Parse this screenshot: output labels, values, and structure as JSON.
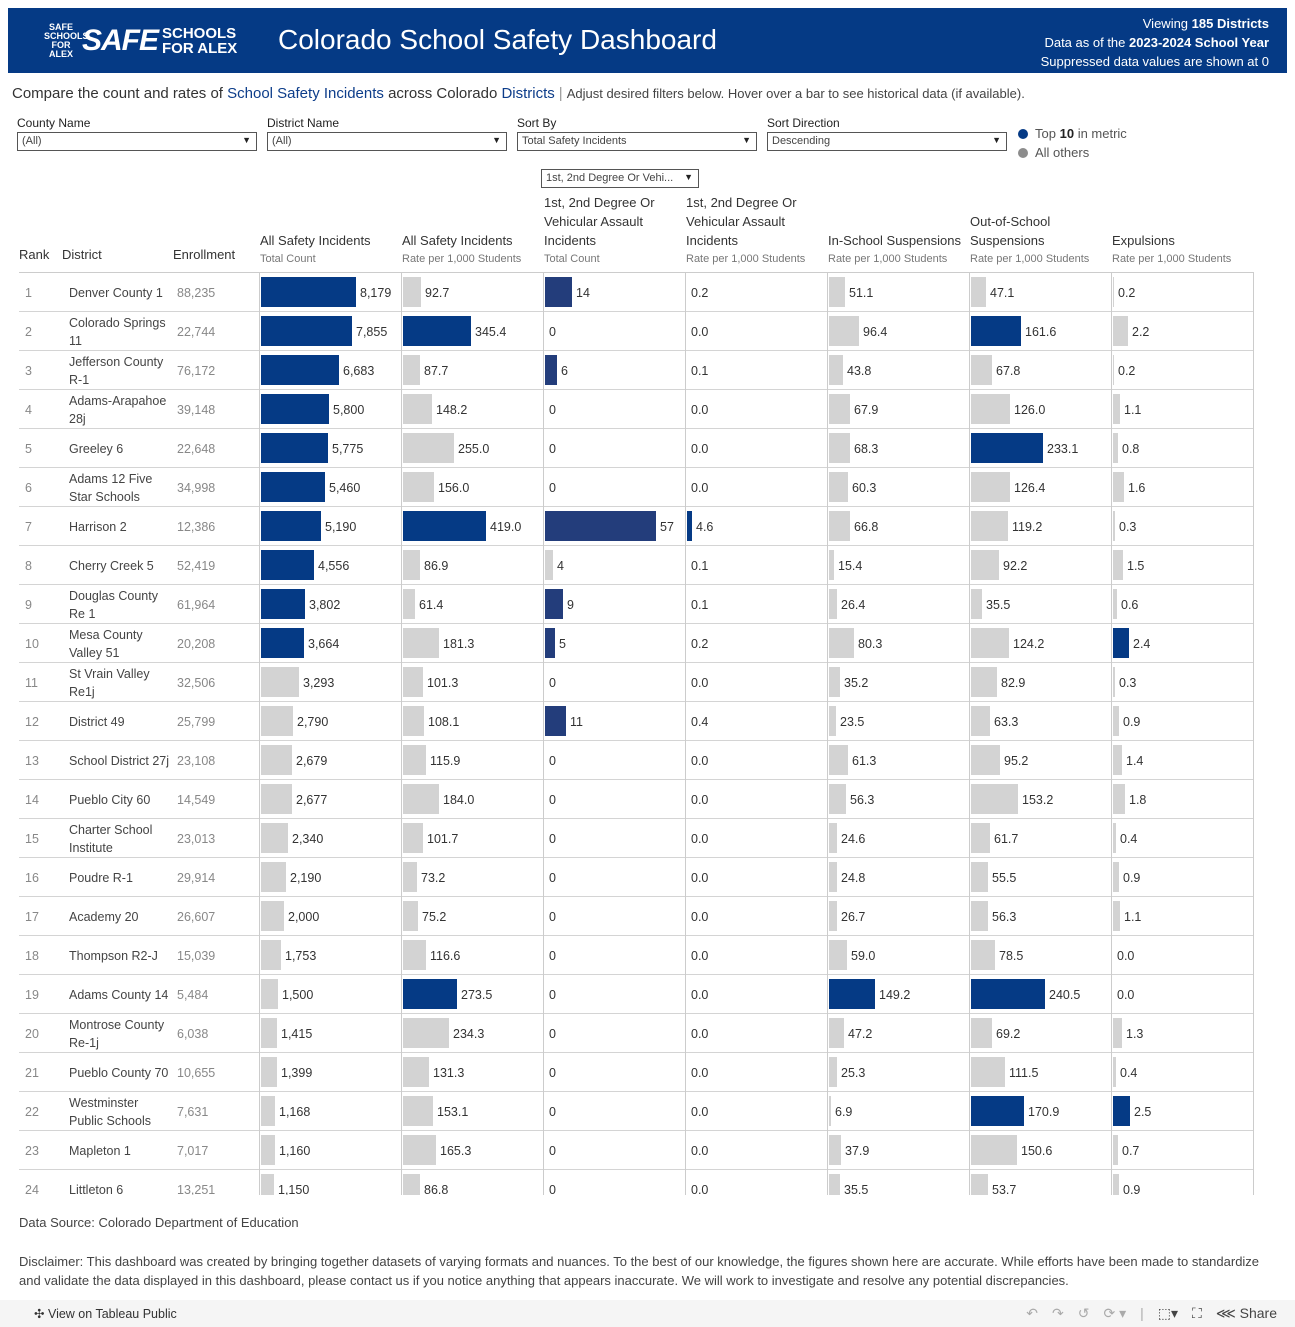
{
  "header": {
    "logo_text": "SAFE SCHOOLS FOR ALEX",
    "title": "Colorado School Safety Dashboard",
    "viewing_prefix": "Viewing",
    "viewing_value": "185 Districts",
    "data_prefix": "Data as of the",
    "data_value": "2023-2024 School Year",
    "suppressed": "Suppressed data values are shown at 0"
  },
  "intro": {
    "p1": "Compare the count and rates of",
    "l1": "School Safety Incidents",
    "p2": "across Colorado",
    "l2": "Districts",
    "sep": "|",
    "sub": "Adjust desired filters below. Hover over a bar to see historical data (if available)."
  },
  "filters": [
    {
      "label": "County Name",
      "value": "(All)"
    },
    {
      "label": "District Name",
      "value": "(All)"
    },
    {
      "label": "Sort By",
      "value": "Total Safety Incidents"
    },
    {
      "label": "Sort Direction",
      "value": "Descending"
    }
  ],
  "incident_type_select": "1st, 2nd Degree Or Vehi...",
  "legend": {
    "top_prefix": "Top",
    "top_n": "10",
    "top_suffix": "in metric",
    "others": "All others",
    "top_color": "#053a85",
    "other_color": "#8c8c8c"
  },
  "colors": {
    "top": "#053a85",
    "other": "#d3d3d3",
    "assault_top": "#233d7b"
  },
  "columns": {
    "rank": "Rank",
    "district": "District",
    "enrollment": "Enrollment",
    "metrics": [
      {
        "title": "All Safety Incidents",
        "sub": "Total Count"
      },
      {
        "title": "All Safety Incidents",
        "sub": "Rate per 1,000 Students"
      },
      {
        "title": "1st, 2nd Degree Or Vehicular Assault Incidents",
        "sub": "Total Count"
      },
      {
        "title": "1st, 2nd Degree Or Vehicular Assault Incidents",
        "sub": "Rate per 1,000 Students"
      },
      {
        "title": "In-School Suspensions",
        "sub": "Rate per 1,000 Students"
      },
      {
        "title": "Out-of-School Suspensions",
        "sub": "Rate per 1,000 Students"
      },
      {
        "title": "Expulsions",
        "sub": "Rate per 1,000 Students"
      }
    ]
  },
  "rows": [
    {
      "rank": "1",
      "district": "Denver County 1",
      "enrollment": "88,235",
      "values": [
        "8,179",
        "92.7",
        "14",
        "0.2",
        "51.1",
        "47.1",
        "0.2"
      ],
      "top": [
        0,
        2
      ]
    },
    {
      "rank": "2",
      "district": "Colorado Springs 11",
      "enrollment": "22,744",
      "values": [
        "7,855",
        "345.4",
        "0",
        "0.0",
        "96.4",
        "161.6",
        "2.2"
      ],
      "top": [
        0,
        1,
        5
      ]
    },
    {
      "rank": "3",
      "district": "Jefferson County R-1",
      "enrollment": "76,172",
      "values": [
        "6,683",
        "87.7",
        "6",
        "0.1",
        "43.8",
        "67.8",
        "0.2"
      ],
      "top": [
        0,
        2
      ]
    },
    {
      "rank": "4",
      "district": "Adams-Arapahoe 28j",
      "enrollment": "39,148",
      "values": [
        "5,800",
        "148.2",
        "0",
        "0.0",
        "67.9",
        "126.0",
        "1.1"
      ],
      "top": [
        0
      ]
    },
    {
      "rank": "5",
      "district": "Greeley 6",
      "enrollment": "22,648",
      "values": [
        "5,775",
        "255.0",
        "0",
        "0.0",
        "68.3",
        "233.1",
        "0.8"
      ],
      "top": [
        0,
        5
      ]
    },
    {
      "rank": "6",
      "district": "Adams 12 Five Star Schools",
      "enrollment": "34,998",
      "values": [
        "5,460",
        "156.0",
        "0",
        "0.0",
        "60.3",
        "126.4",
        "1.6"
      ],
      "top": [
        0
      ]
    },
    {
      "rank": "7",
      "district": "Harrison 2",
      "enrollment": "12,386",
      "values": [
        "5,190",
        "419.0",
        "57",
        "4.6",
        "66.8",
        "119.2",
        "0.3"
      ],
      "top": [
        0,
        1,
        2,
        3
      ]
    },
    {
      "rank": "8",
      "district": "Cherry Creek 5",
      "enrollment": "52,419",
      "values": [
        "4,556",
        "86.9",
        "4",
        "0.1",
        "15.4",
        "92.2",
        "1.5"
      ],
      "top": [
        0
      ]
    },
    {
      "rank": "9",
      "district": "Douglas County Re 1",
      "enrollment": "61,964",
      "values": [
        "3,802",
        "61.4",
        "9",
        "0.1",
        "26.4",
        "35.5",
        "0.6"
      ],
      "top": [
        0,
        2
      ]
    },
    {
      "rank": "10",
      "district": "Mesa County Valley 51",
      "enrollment": "20,208",
      "values": [
        "3,664",
        "181.3",
        "5",
        "0.2",
        "80.3",
        "124.2",
        "2.4"
      ],
      "top": [
        0,
        2,
        6
      ]
    },
    {
      "rank": "11",
      "district": "St Vrain Valley Re1j",
      "enrollment": "32,506",
      "values": [
        "3,293",
        "101.3",
        "0",
        "0.0",
        "35.2",
        "82.9",
        "0.3"
      ],
      "top": []
    },
    {
      "rank": "12",
      "district": "District 49",
      "enrollment": "25,799",
      "values": [
        "2,790",
        "108.1",
        "11",
        "0.4",
        "23.5",
        "63.3",
        "0.9"
      ],
      "top": [
        2
      ]
    },
    {
      "rank": "13",
      "district": "School District 27j",
      "enrollment": "23,108",
      "values": [
        "2,679",
        "115.9",
        "0",
        "0.0",
        "61.3",
        "95.2",
        "1.4"
      ],
      "top": []
    },
    {
      "rank": "14",
      "district": "Pueblo City 60",
      "enrollment": "14,549",
      "values": [
        "2,677",
        "184.0",
        "0",
        "0.0",
        "56.3",
        "153.2",
        "1.8"
      ],
      "top": []
    },
    {
      "rank": "15",
      "district": "Charter School Institute",
      "enrollment": "23,013",
      "values": [
        "2,340",
        "101.7",
        "0",
        "0.0",
        "24.6",
        "61.7",
        "0.4"
      ],
      "top": []
    },
    {
      "rank": "16",
      "district": "Poudre R-1",
      "enrollment": "29,914",
      "values": [
        "2,190",
        "73.2",
        "0",
        "0.0",
        "24.8",
        "55.5",
        "0.9"
      ],
      "top": []
    },
    {
      "rank": "17",
      "district": "Academy 20",
      "enrollment": "26,607",
      "values": [
        "2,000",
        "75.2",
        "0",
        "0.0",
        "26.7",
        "56.3",
        "1.1"
      ],
      "top": []
    },
    {
      "rank": "18",
      "district": "Thompson R2-J",
      "enrollment": "15,039",
      "values": [
        "1,753",
        "116.6",
        "0",
        "0.0",
        "59.0",
        "78.5",
        "0.0"
      ],
      "top": []
    },
    {
      "rank": "19",
      "district": "Adams County 14",
      "enrollment": "5,484",
      "values": [
        "1,500",
        "273.5",
        "0",
        "0.0",
        "149.2",
        "240.5",
        "0.0"
      ],
      "top": [
        1,
        4,
        5
      ]
    },
    {
      "rank": "20",
      "district": "Montrose County Re-1j",
      "enrollment": "6,038",
      "values": [
        "1,415",
        "234.3",
        "0",
        "0.0",
        "47.2",
        "69.2",
        "1.3"
      ],
      "top": []
    },
    {
      "rank": "21",
      "district": "Pueblo County 70",
      "enrollment": "10,655",
      "values": [
        "1,399",
        "131.3",
        "0",
        "0.0",
        "25.3",
        "111.5",
        "0.4"
      ],
      "top": []
    },
    {
      "rank": "22",
      "district": "Westminster Public Schools",
      "enrollment": "7,631",
      "values": [
        "1,168",
        "153.1",
        "0",
        "0.0",
        "6.9",
        "170.9",
        "2.5"
      ],
      "top": [
        5,
        6
      ]
    },
    {
      "rank": "23",
      "district": "Mapleton 1",
      "enrollment": "7,017",
      "values": [
        "1,160",
        "165.3",
        "0",
        "0.0",
        "37.9",
        "150.6",
        "0.7"
      ],
      "top": []
    },
    {
      "rank": "24",
      "district": "Littleton 6",
      "enrollment": "13,251",
      "values": [
        "1,150",
        "86.8",
        "0",
        "0.0",
        "35.5",
        "53.7",
        "0.9"
      ],
      "top": []
    }
  ],
  "data_source": "Data Source: Colorado Department of Education",
  "disclaimer": "Disclaimer: This dashboard was created by bringing together datasets of varying formats and nuances. To the best of our knowledge, the figures shown here are accurate. While efforts have been made to standardize and validate the data displayed in this dashboard, please contact us if you notice anything that appears inaccurate. We will work to investigate and resolve any potential discrepancies.",
  "footer": {
    "view_label": "View on Tableau Public",
    "share_label": "Share"
  }
}
